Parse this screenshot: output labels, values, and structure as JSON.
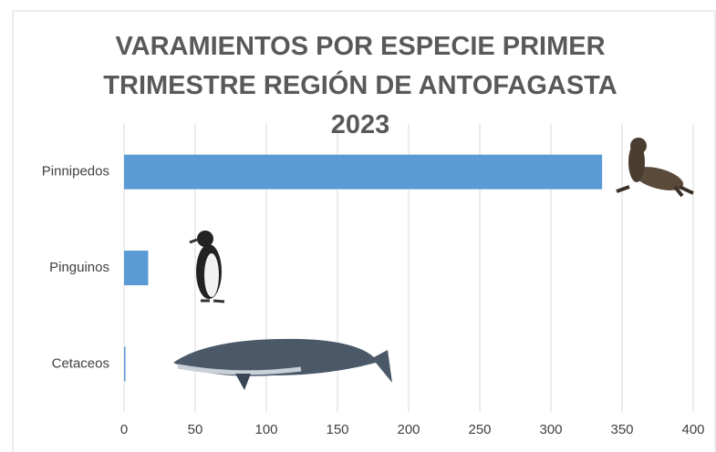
{
  "chart_data": {
    "type": "hbar",
    "title": "VARAMIENTOS POR ESPECIE PRIMER TRIMESTRE REGIÓN DE ANTOFAGASTA 2023",
    "categories": [
      "Pinnipedos",
      "Pinguinos",
      "Cetaceos"
    ],
    "values": [
      336,
      17,
      1
    ],
    "color": "#5b9bd5",
    "xlim": [
      0,
      400
    ],
    "xticks": [
      0,
      50,
      100,
      150,
      200,
      250,
      300,
      350,
      400
    ],
    "grid": true
  }
}
